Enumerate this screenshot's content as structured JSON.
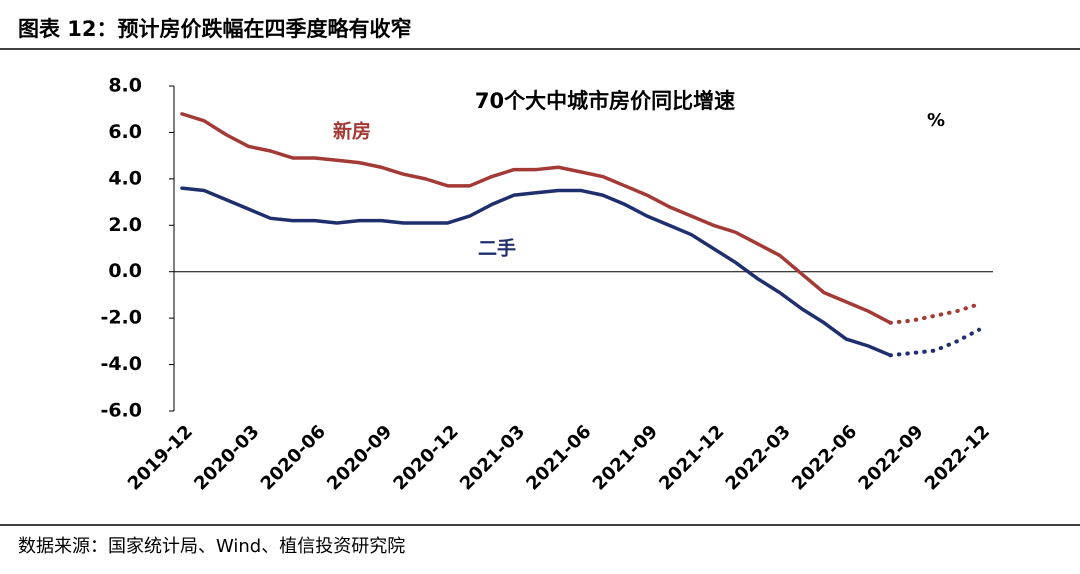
{
  "header": {
    "title": "图表 12：预计房价跌幅在四季度略有收窄"
  },
  "chart_data": {
    "type": "line",
    "title": "70个大中城市房价同比增速",
    "unit": "%",
    "categories": [
      "2019-12",
      null,
      null,
      "2020-03",
      null,
      null,
      "2020-06",
      null,
      null,
      "2020-09",
      null,
      null,
      "2020-12",
      null,
      null,
      "2021-03",
      null,
      null,
      "2021-06",
      null,
      null,
      "2021-09",
      null,
      null,
      "2021-12",
      null,
      null,
      "2022-03",
      null,
      null,
      "2022-06",
      null,
      null,
      "2022-09",
      null,
      null,
      "2022-12"
    ],
    "series": [
      {
        "name": "新房",
        "color": "#a33a36",
        "dashed": false,
        "values": [
          6.8,
          6.5,
          5.9,
          5.4,
          5.2,
          4.9,
          4.9,
          4.8,
          4.7,
          4.5,
          4.2,
          4.0,
          3.7,
          3.7,
          4.1,
          4.4,
          4.4,
          4.5,
          4.3,
          4.1,
          3.7,
          3.3,
          2.8,
          2.4,
          2.0,
          1.7,
          1.2,
          0.7,
          -0.1,
          -0.9,
          -1.3,
          -1.7,
          -2.2,
          null,
          null,
          null,
          null
        ]
      },
      {
        "name": "二手",
        "color": "#1f2f6e",
        "dashed": false,
        "values": [
          3.6,
          3.5,
          3.1,
          2.7,
          2.3,
          2.2,
          2.2,
          2.1,
          2.2,
          2.2,
          2.1,
          2.1,
          2.1,
          2.4,
          2.9,
          3.3,
          3.4,
          3.5,
          3.5,
          3.3,
          2.9,
          2.4,
          2.0,
          1.6,
          1.0,
          0.4,
          -0.3,
          -0.9,
          -1.6,
          -2.2,
          -2.9,
          -3.2,
          -3.6,
          null,
          null,
          null,
          null
        ]
      },
      {
        "color": "#a33a36",
        "dashed": true,
        "values": [
          null,
          null,
          null,
          null,
          null,
          null,
          null,
          null,
          null,
          null,
          null,
          null,
          null,
          null,
          null,
          null,
          null,
          null,
          null,
          null,
          null,
          null,
          null,
          null,
          null,
          null,
          null,
          null,
          null,
          null,
          null,
          null,
          -2.2,
          -2.1,
          -1.9,
          -1.7,
          -1.4
        ]
      },
      {
        "color": "#1f2f6e",
        "dashed": true,
        "values": [
          null,
          null,
          null,
          null,
          null,
          null,
          null,
          null,
          null,
          null,
          null,
          null,
          null,
          null,
          null,
          null,
          null,
          null,
          null,
          null,
          null,
          null,
          null,
          null,
          null,
          null,
          null,
          null,
          null,
          null,
          null,
          null,
          -3.6,
          -3.5,
          -3.4,
          -3.0,
          -2.5
        ]
      }
    ],
    "ylim": [
      -6,
      8
    ],
    "yticks": [
      {
        "value": -6,
        "label": "-6.0"
      },
      {
        "value": -4,
        "label": "-4.0"
      },
      {
        "value": -2,
        "label": "-2.0"
      },
      {
        "value": 0,
        "label": "0.0"
      },
      {
        "value": 2,
        "label": "2.0"
      },
      {
        "value": 4,
        "label": "4.0"
      },
      {
        "value": 6,
        "label": "6.0"
      },
      {
        "value": 8,
        "label": "8.0"
      }
    ],
    "grid": false
  },
  "footer": {
    "source": "数据来源：国家统计局、Wind、植信投资研究院"
  }
}
